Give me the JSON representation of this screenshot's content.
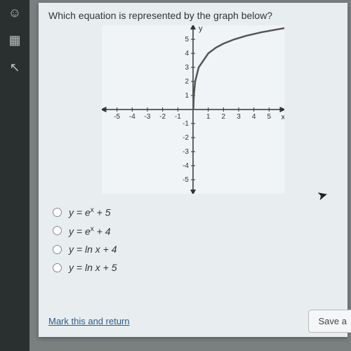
{
  "question": "Which equation is represented by the graph below?",
  "chart": {
    "type": "line",
    "xlim": [
      -6,
      6
    ],
    "ylim": [
      -6,
      6
    ],
    "xtick_labels": [
      "-5",
      "-4",
      "-3",
      "-2",
      "-1",
      "1",
      "2",
      "3",
      "4",
      "5"
    ],
    "ytick_labels_pos": [
      "1",
      "2",
      "3",
      "4",
      "5"
    ],
    "ytick_labels_neg": [
      "-1",
      "-2",
      "-3",
      "-4",
      "-5"
    ],
    "x_axis_label": "x",
    "y_axis_label": "y",
    "axis_color": "#333333",
    "tick_color": "#333333",
    "curve_color": "#555555",
    "background_color": "#f0f4f6",
    "label_fontsize": 10,
    "line_width": 2.5,
    "curve_points": [
      [
        0.02,
        -4.0
      ],
      [
        0.05,
        -3.0
      ],
      [
        0.14,
        -2.0
      ],
      [
        0.37,
        -1.0
      ],
      [
        1.0,
        0.0
      ],
      [
        1.5,
        0.405
      ],
      [
        2.0,
        0.693
      ],
      [
        2.718,
        1.0
      ],
      [
        3.5,
        1.253
      ],
      [
        4.5,
        1.504
      ],
      [
        6.0,
        1.792
      ],
      [
        7.0,
        1.946
      ]
    ],
    "curve_translate_y": 4,
    "arrowheads": true
  },
  "options": [
    {
      "id": "opt-a",
      "html": "y = e<span class='sup'>x</span> + 5"
    },
    {
      "id": "opt-b",
      "html": "y = e<span class='sup'>x</span> + 4"
    },
    {
      "id": "opt-c",
      "html": "y = ln x + 4"
    },
    {
      "id": "opt-d",
      "html": "y = ln x + 5"
    }
  ],
  "footer": {
    "mark_link": "Mark this and return",
    "save_label": "Save a"
  },
  "sidebar_tools": [
    "face",
    "calc",
    "arrow"
  ]
}
